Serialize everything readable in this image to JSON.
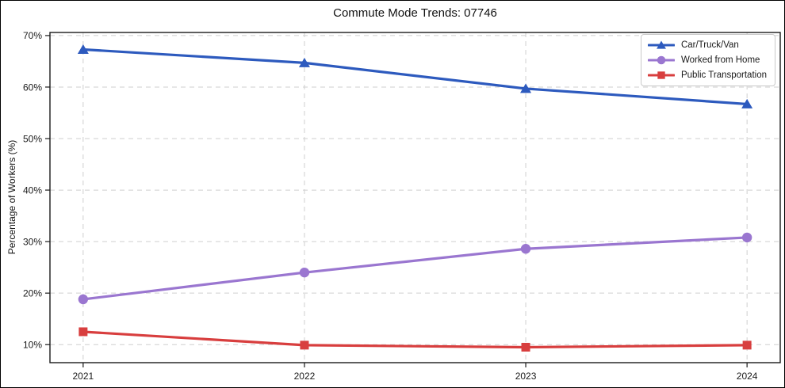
{
  "chart_data": {
    "type": "line",
    "title": "Commute Mode Trends: 07746",
    "xlabel": "",
    "ylabel": "Percentage of Workers (%)",
    "x": [
      2021,
      2022,
      2023,
      2024
    ],
    "x_tick_labels": [
      "2021",
      "2022",
      "2023",
      "2024"
    ],
    "y_ticks": [
      10,
      20,
      30,
      40,
      50,
      60,
      70
    ],
    "y_tick_labels": [
      "10%",
      "20%",
      "30%",
      "40%",
      "50%",
      "60%",
      "70%"
    ],
    "xlim": [
      2020.85,
      2024.15
    ],
    "ylim": [
      6.5,
      70.6
    ],
    "grid": true,
    "legend_position": "upper right",
    "series": [
      {
        "name": "Car/Truck/Van",
        "marker": "triangle",
        "color": "#2d5abe",
        "values": [
          67.3,
          64.7,
          59.7,
          56.7
        ]
      },
      {
        "name": "Worked from Home",
        "marker": "circle",
        "color": "#9a76d0",
        "values": [
          18.8,
          24.0,
          28.6,
          30.8
        ]
      },
      {
        "name": "Public Transportation",
        "marker": "square",
        "color": "#d83e3e",
        "values": [
          12.5,
          9.9,
          9.5,
          9.9
        ]
      }
    ],
    "colors": {
      "grid": "#cfcfcf",
      "spine": "#1a1a1a",
      "text": "#1a1a1a",
      "background": "#ffffff"
    }
  }
}
